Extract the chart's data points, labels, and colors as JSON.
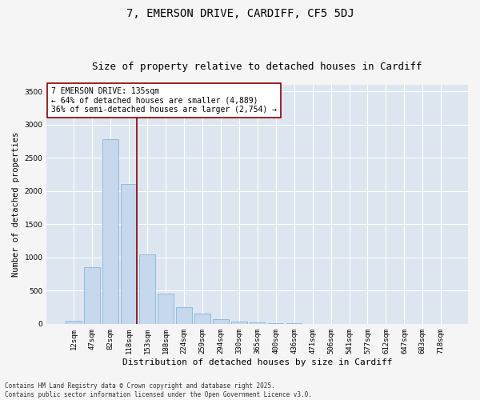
{
  "title": "7, EMERSON DRIVE, CARDIFF, CF5 5DJ",
  "subtitle": "Size of property relative to detached houses in Cardiff",
  "xlabel": "Distribution of detached houses by size in Cardiff",
  "ylabel": "Number of detached properties",
  "categories": [
    "12sqm",
    "47sqm",
    "82sqm",
    "118sqm",
    "153sqm",
    "188sqm",
    "224sqm",
    "259sqm",
    "294sqm",
    "330sqm",
    "365sqm",
    "400sqm",
    "436sqm",
    "471sqm",
    "506sqm",
    "541sqm",
    "577sqm",
    "612sqm",
    "647sqm",
    "683sqm",
    "718sqm"
  ],
  "values": [
    50,
    850,
    2780,
    2110,
    1040,
    460,
    250,
    155,
    65,
    40,
    20,
    15,
    5,
    2,
    1,
    0,
    0,
    0,
    0,
    0,
    0
  ],
  "bar_color": "#c5d8ee",
  "bar_edge_color": "#7aadd4",
  "vline_x": 3.42,
  "vline_color": "#8b0000",
  "annotation_text": "7 EMERSON DRIVE: 135sqm\n← 64% of detached houses are smaller (4,889)\n36% of semi-detached houses are larger (2,754) →",
  "annotation_box_color": "#ffffff",
  "annotation_box_edge_color": "#8b0000",
  "ylim": [
    0,
    3600
  ],
  "yticks": [
    0,
    500,
    1000,
    1500,
    2000,
    2500,
    3000,
    3500
  ],
  "background_color": "#dde6f0",
  "grid_color": "#ffffff",
  "fig_bg_color": "#f5f5f5",
  "footer_line1": "Contains HM Land Registry data © Crown copyright and database right 2025.",
  "footer_line2": "Contains public sector information licensed under the Open Government Licence v3.0.",
  "title_fontsize": 10,
  "subtitle_fontsize": 9,
  "xlabel_fontsize": 8,
  "ylabel_fontsize": 7.5,
  "tick_fontsize": 6.5,
  "annotation_fontsize": 7,
  "footer_fontsize": 5.5
}
